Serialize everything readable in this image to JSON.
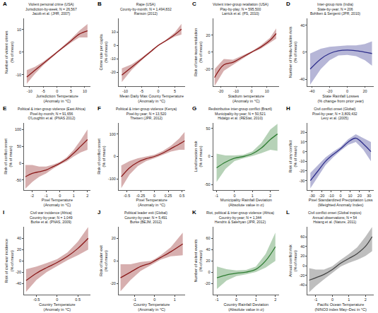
{
  "chart_data": [
    {
      "type": "line",
      "panel": "A",
      "title": "Violent personal crime (USA)",
      "subtitle": [
        "Jurisdiction-by-week; N = 26,567",
        "Jacob et al. (JHR, 2007)"
      ],
      "xlabel": [
        "Jurisdiction Temperature",
        "(Anomaly in °C)"
      ],
      "ylabel": [
        "Number of violent crimes",
        "(% of mean)"
      ],
      "color": "#8b1a1a",
      "x": [
        -11,
        -8,
        -5,
        -2,
        0,
        2,
        5,
        8,
        11
      ],
      "values": [
        -11,
        -8,
        -5,
        -2,
        0,
        2,
        5,
        8,
        9.5
      ],
      "lower": [
        -14,
        -9.5,
        -5.8,
        -2.5,
        -0.4,
        1.5,
        4.2,
        6.5,
        6.5
      ],
      "upper": [
        -8,
        -6.5,
        -4.2,
        -1.5,
        0.4,
        2.5,
        5.8,
        9.5,
        12.5
      ],
      "xlim": [
        -12,
        12
      ],
      "xticks": [
        -10,
        -5,
        0,
        5,
        10
      ],
      "ylim": [
        -15,
        15
      ],
      "yticks": [
        -10,
        0,
        10
      ]
    },
    {
      "type": "line",
      "panel": "B",
      "title": "Rape (USA)",
      "subtitle": [
        "County-by-month; N = 1,494,832",
        "Ranson (2012)"
      ],
      "xlabel": [
        "Mean Daily Max County Temperature",
        "(Anomaly in °C)"
      ],
      "ylabel": [
        "Crime rate per capita",
        "(% of mean)"
      ],
      "color": "#8b1a1a",
      "x": [
        -11,
        -8,
        -5,
        -2,
        0,
        2,
        5,
        7
      ],
      "values": [
        -22,
        -16,
        -10,
        -4,
        0,
        3,
        8,
        12
      ],
      "lower": [
        -27,
        -18,
        -11,
        -4.5,
        -0.5,
        2.5,
        6.5,
        8
      ],
      "upper": [
        -17,
        -14,
        -9,
        -3.5,
        0.5,
        3.5,
        9.5,
        16
      ],
      "xlim": [
        -12,
        8
      ],
      "xticks": [
        -10,
        -5,
        0,
        5
      ],
      "ylim": [
        -30,
        20
      ],
      "yticks": [
        -20,
        -10,
        0,
        10
      ]
    },
    {
      "type": "line",
      "panel": "C",
      "title": "Violent inter-group retaliation (USA)",
      "subtitle": [
        "Play-by-play; N = 595,500",
        "Larrick et al. (PS, 2010)"
      ],
      "xlabel": [
        "Stadium temperature",
        "(Anomaly in °C)"
      ],
      "ylabel": [
        "Risk of inter-team retaliation",
        "(% of mean)"
      ],
      "color": "#8b1a1a",
      "x": [
        -24,
        -18,
        -12,
        -6,
        0,
        6,
        12,
        16
      ],
      "values": [
        -30,
        -15,
        -12,
        -6,
        0,
        6,
        14,
        22
      ],
      "lower": [
        -40,
        -22,
        -15,
        -8,
        -1,
        4,
        11,
        16
      ],
      "upper": [
        -20,
        -8,
        -9,
        -4,
        1,
        8,
        17,
        28
      ],
      "xlim": [
        -25,
        18
      ],
      "xticks": [
        -20,
        -10,
        0,
        10
      ],
      "ylim": [
        -40,
        40
      ],
      "yticks": [
        -20,
        0,
        20
      ]
    },
    {
      "type": "line",
      "panel": "D",
      "title": "Inter-group riots (India)",
      "subtitle": [
        "State-by-year; N = 206",
        "Bohlken & Sergenti (JPR, 2010)"
      ],
      "xlabel": [
        "State Rainfall Losses",
        "(% change from prior year)"
      ],
      "ylabel": [
        "Number of Hindu-Muslim riots",
        "(% of mean)"
      ],
      "color": "#2e2e8c",
      "x": [
        -42,
        -30,
        -20,
        -10,
        0,
        10,
        20,
        28
      ],
      "values": [
        -25,
        -10,
        -2,
        2,
        3,
        2,
        0,
        -2
      ],
      "lower": [
        -48,
        -25,
        -12,
        -5,
        -4,
        -6,
        -12,
        -20
      ],
      "upper": [
        -2,
        5,
        8,
        9,
        10,
        10,
        12,
        16
      ],
      "xlim": [
        -45,
        30
      ],
      "xticks": [
        -40,
        -20,
        0,
        20
      ],
      "ylim": [
        -50,
        50
      ],
      "yticks": [
        -40,
        0,
        40
      ]
    },
    {
      "type": "line",
      "panel": "E",
      "title": "Political & inter-group violence (East Africa)",
      "subtitle": [
        "Pixel-by-month; N = 91,656",
        "O'Loughlin et al. (PNAS 2012)"
      ],
      "xlabel": [
        "Pixel Temperature",
        "(Anomaly in °C)"
      ],
      "ylabel": [
        "Risk of conflict onset",
        "(% of mean)"
      ],
      "color": "#8b1a1a",
      "x": [
        -2.5,
        -2,
        -1.5,
        -1,
        -0.5,
        0,
        0.5,
        1,
        1.5,
        2
      ],
      "values": [
        -40,
        -30,
        -25,
        -20,
        -10,
        0,
        12,
        30,
        50,
        70
      ],
      "lower": [
        -75,
        -55,
        -40,
        -30,
        -16,
        -4,
        6,
        20,
        32,
        40
      ],
      "upper": [
        -5,
        -5,
        -10,
        -10,
        -4,
        4,
        18,
        40,
        68,
        100
      ],
      "xlim": [
        -2.6,
        2.2
      ],
      "xticks": [
        -2,
        -1,
        0,
        1,
        2
      ],
      "ylim": [
        -80,
        120
      ],
      "yticks": [
        -50,
        0,
        50,
        100
      ]
    },
    {
      "type": "line",
      "panel": "F",
      "title": "Political & inter-group violence (Kenya)",
      "subtitle": [
        "Pixel-by-year; N = 13,520",
        "Theisen (JPR, 2012)"
      ],
      "xlabel": [
        "Pixel Temperature",
        "(Anomaly in °C)"
      ],
      "ylabel": [
        "Risk of conflict onset",
        "(% of mean)"
      ],
      "color": "#8b1a1a",
      "x": [
        -0.6,
        -0.45,
        -0.3,
        -0.15,
        0,
        0.15,
        0.3,
        0.45,
        0.55
      ],
      "values": [
        -90,
        -50,
        -25,
        -10,
        0,
        15,
        35,
        55,
        70
      ],
      "lower": [
        -140,
        -80,
        -42,
        -20,
        -8,
        6,
        22,
        30,
        30
      ],
      "upper": [
        -40,
        -20,
        -8,
        0,
        8,
        24,
        48,
        80,
        110
      ],
      "xlim": [
        -0.65,
        0.55
      ],
      "xticks": [
        -0.5,
        -0.25,
        0,
        0.25,
        0.5
      ],
      "ylim": [
        -150,
        150
      ],
      "yticks": [
        -100,
        0,
        100
      ]
    },
    {
      "type": "line",
      "panel": "G",
      "title": "Redistributive inter-group conflict (Brazil)",
      "subtitle": [
        "Municipality-by-year; N = 50,521",
        "Hidalgo et al. (REStat, 2010)"
      ],
      "xlabel": [
        "Municipality Rainfall Deviation",
        "(Absolute value in σ)"
      ],
      "ylabel": [
        "Land invasion risk",
        "(% of mean)"
      ],
      "color": "#2e7d32",
      "x": [
        -1,
        -0.5,
        0,
        0.5,
        1,
        1.5,
        2,
        2.4
      ],
      "values": [
        -20,
        -10,
        -3,
        0,
        5,
        15,
        30,
        40
      ],
      "lower": [
        -45,
        -22,
        -8,
        -3,
        1,
        6,
        12,
        10
      ],
      "upper": [
        5,
        2,
        2,
        3,
        9,
        24,
        48,
        58
      ],
      "xlim": [
        -1.2,
        2.5
      ],
      "xticks": [
        -1,
        0,
        1,
        2
      ],
      "ylim": [
        -60,
        60
      ],
      "yticks": [
        -50,
        0,
        50
      ]
    },
    {
      "type": "line",
      "panel": "H",
      "title": "Civil conflict onset (Global)",
      "subtitle": [
        "Pixel-by-year; N = 3,809,432",
        "Levy et al. (2005)"
      ],
      "xlabel": [
        "Pixel Standardized Precipitation Loss",
        "(Weighted Anomaly Index)"
      ],
      "ylabel": [
        "Risk of any conflict",
        "(% of mean)"
      ],
      "color": "#2e2e8c",
      "x": [
        -32,
        -24,
        -16,
        -8,
        0,
        8,
        16,
        24,
        32
      ],
      "values": [
        -30,
        -20,
        -10,
        -3,
        3,
        10,
        14,
        8,
        0
      ],
      "lower": [
        -38,
        -26,
        -14,
        -6,
        1,
        7,
        10,
        2,
        -10
      ],
      "upper": [
        -22,
        -14,
        -6,
        0,
        5,
        13,
        18,
        14,
        10
      ],
      "xlim": [
        -35,
        35
      ],
      "xticks": [
        -30,
        -20,
        -10,
        0,
        10,
        20,
        30
      ],
      "ylim": [
        -40,
        30
      ],
      "yticks": [
        -30,
        -20,
        -10,
        0,
        10,
        20
      ]
    },
    {
      "type": "line",
      "panel": "I",
      "title": "Civil war incidence (Africa)",
      "subtitle": [
        "Country-by-year; N = 1,049",
        "Burke et al. (PNAS, 2009)"
      ],
      "xlabel": [
        "Country Temperature",
        "(Anomaly in °C)"
      ],
      "ylabel": [
        "Risk of civil war incidence",
        "(% of mean)"
      ],
      "color": "#8b1a1a",
      "x": [
        -0.75,
        -0.5,
        -0.25,
        0,
        0.25,
        0.5,
        0.75
      ],
      "values": [
        -35,
        -22,
        -12,
        -3,
        8,
        22,
        40
      ],
      "lower": [
        -55,
        -34,
        -20,
        -9,
        1,
        10,
        20
      ],
      "upper": [
        -15,
        -10,
        -4,
        3,
        15,
        34,
        60
      ],
      "xlim": [
        -0.8,
        0.8
      ],
      "xticks": [
        -0.5,
        0,
        0.5
      ],
      "ylim": [
        -60,
        60
      ],
      "yticks": [
        -40,
        -20,
        0,
        20,
        40
      ]
    },
    {
      "type": "line",
      "panel": "J",
      "title": "Political leader exit (Global)",
      "subtitle": [
        "Country-by-year; N = 5,491",
        "Burke (BEJM, 2012)"
      ],
      "xlabel": [
        "Country Temperature",
        "(Anomaly in °C)"
      ],
      "ylabel": [
        "Risk of leader exit",
        "(% of mean)"
      ],
      "color": "#8b1a1a",
      "x": [
        -1.7,
        -1.2,
        -0.7,
        -0.2,
        0,
        0.3,
        0.8,
        1.4
      ],
      "values": [
        -15,
        -10,
        -5,
        -2,
        0,
        3,
        8,
        15
      ],
      "lower": [
        -27,
        -17,
        -9,
        -4,
        -1.5,
        1,
        4,
        5
      ],
      "upper": [
        -3,
        -3,
        -1,
        0,
        1.5,
        5,
        12,
        25
      ],
      "xlim": [
        -1.8,
        1.5
      ],
      "xticks": [
        -1,
        0,
        1
      ],
      "ylim": [
        -30,
        30
      ],
      "yticks": [
        -20,
        0,
        20
      ]
    },
    {
      "type": "line",
      "panel": "K",
      "title": "Riot, political & inter-group violence (Africa)",
      "subtitle": [
        "Country-by-year; N = 1,344",
        "Hendrix & Salehyan (JPR, 2012)"
      ],
      "xlabel": [
        "Country Rainfall Deviation",
        "(Absolute value in σ)"
      ],
      "ylabel": [
        "Number of violent events",
        "(% of mean)"
      ],
      "color": "#2e7d32",
      "x": [
        -1,
        -0.5,
        0,
        0.5,
        1,
        1.5,
        2
      ],
      "values": [
        -10,
        -5,
        -2,
        0,
        5,
        20,
        45
      ],
      "lower": [
        -30,
        -15,
        -7,
        -4,
        0,
        8,
        20
      ],
      "upper": [
        10,
        5,
        3,
        4,
        10,
        32,
        70
      ],
      "xlim": [
        -1.2,
        2.2
      ],
      "xticks": [
        -1,
        0,
        1,
        2
      ],
      "ylim": [
        -40,
        80
      ],
      "yticks": [
        -20,
        0,
        20,
        40,
        60
      ]
    },
    {
      "type": "line",
      "panel": "L",
      "title": "Civil conflict onset (Global tropics)",
      "subtitle": [
        "Annual observations; N = 54",
        "Hsiang et al. (Nature, 2011)"
      ],
      "xlabel": [
        "Pacific Ocean Temperature",
        "(NINO3 index May–Dec in °C)"
      ],
      "ylabel": [
        "Annual conflict risk",
        "(% of mean)"
      ],
      "color": "#444444",
      "x": [
        -1.4,
        -1,
        -0.5,
        0,
        0.5,
        1,
        1.5,
        2,
        2.4
      ],
      "values": [
        -30,
        -25,
        -18,
        -8,
        5,
        15,
        25,
        40,
        60
      ],
      "lower": [
        -55,
        -42,
        -28,
        -15,
        -2,
        6,
        12,
        20,
        30
      ],
      "upper": [
        -5,
        -8,
        -8,
        -1,
        12,
        24,
        38,
        60,
        80
      ],
      "xlim": [
        -1.5,
        2.5
      ],
      "xticks": [
        -1,
        0,
        1,
        2
      ],
      "ylim": [
        -60,
        80
      ],
      "yticks": [
        -40,
        -20,
        0,
        20,
        40,
        60
      ]
    }
  ]
}
